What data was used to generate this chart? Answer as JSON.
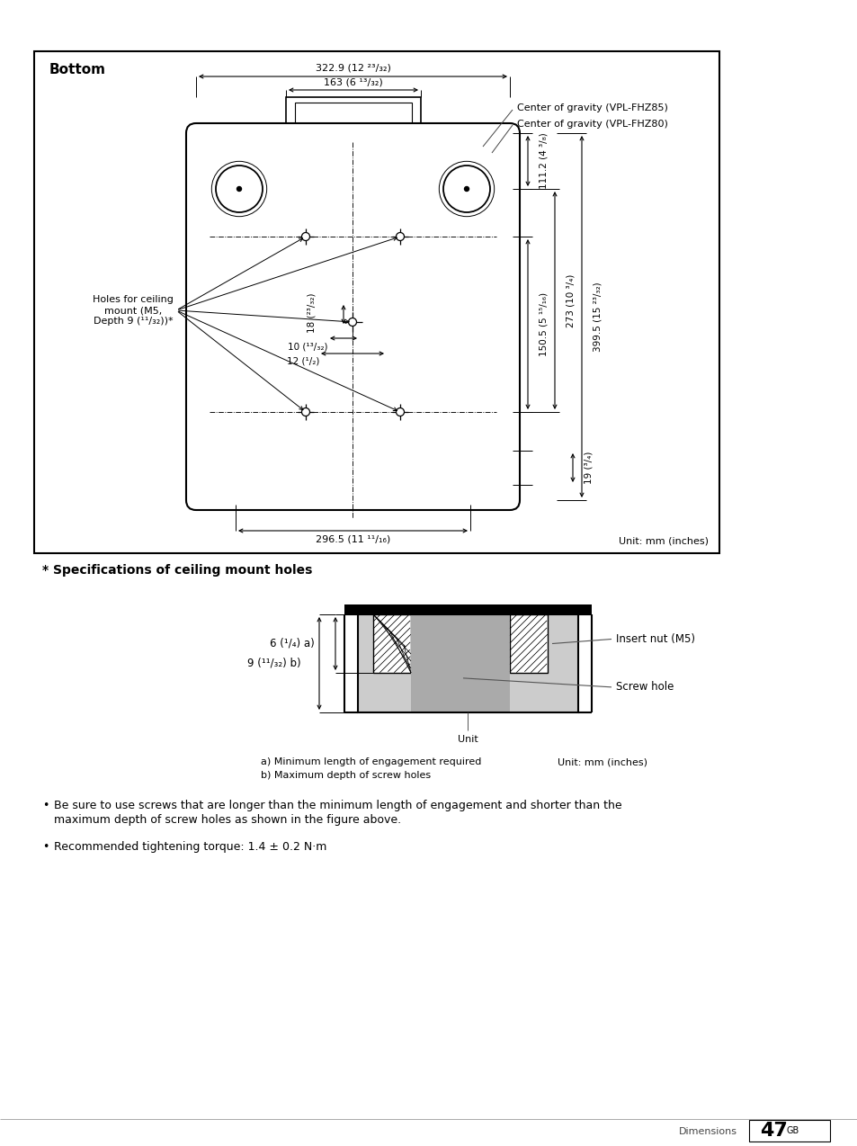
{
  "bg_color": "#ffffff",
  "title_top": "Bottom",
  "specs_title": "* Specifications of ceiling mount holes",
  "bullet1_line1": "Be sure to use screws that are longer than the minimum length of engagement and shorter than the",
  "bullet1_line2": "maximum depth of screw holes as shown in the figure above.",
  "bullet2": "Recommended tightening torque: 1.4 ± 0.2 N·m",
  "footer_section": "Dimensions",
  "footer_page": "47",
  "footer_sup": "GB",
  "unit_mm": "Unit: mm (inches)",
  "dim_322": "322.9 (12 ²³/₃₂)",
  "dim_163": "163 (6 ¹³/₃₂)",
  "dim_296": "296.5 (11 ¹¹/₁₆)",
  "dim_111": "111.2 (4 ³/₈)",
  "dim_150": "150.5 (5 ¹⁵/₁₆)",
  "dim_273": "273 (10 ³/₄)",
  "dim_399": "399.5 (15 ²³/₃₂)",
  "dim_19": "19 (³/₄)",
  "dim_18": "18 (²³/₃₂)",
  "dim_10": "10 (¹³/₃₂)",
  "dim_12": "12 (¹/₂)",
  "cog85": "Center of gravity (VPL-FHZ85)",
  "cog80": "Center of gravity (VPL-FHZ80)",
  "holes_label": "Holes for ceiling\nmount (M5,\nDepth 9 (¹¹/₃₂))*",
  "insert_nut": "Insert nut (M5)",
  "screw_hole": "Screw hole",
  "unit_label3": "Unit",
  "label_a": "6 (¹/₄) a)",
  "label_b": "9 (¹¹/₃₂) b)",
  "note_a": "a) Minimum length of engagement required",
  "note_b": "b) Maximum depth of screw holes",
  "unit_mm2": "Unit: mm (inches)"
}
